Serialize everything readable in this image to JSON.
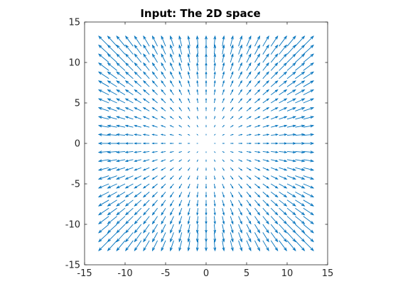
{
  "chart_data": {
    "type": "quiver",
    "title": "Input: The 2D space",
    "xlabel": "",
    "ylabel": "",
    "xlim": [
      -15,
      15
    ],
    "ylim": [
      -15,
      15
    ],
    "xticks": [
      -15,
      -10,
      -5,
      0,
      5,
      10,
      15
    ],
    "yticks": [
      -15,
      -10,
      -5,
      0,
      5,
      10,
      15
    ],
    "xtick_labels": [
      "-15",
      "-10",
      "-5",
      "0",
      "5",
      "10",
      "15"
    ],
    "ytick_labels": [
      "-15",
      "-10",
      "-5",
      "0",
      "5",
      "10",
      "15"
    ],
    "grid": false,
    "box": true,
    "field": {
      "description_of_values": "vector at (x, y) equals (x, y): outward radial field",
      "x_range": [
        -12,
        12
      ],
      "y_range": [
        -12,
        12
      ],
      "step": 1,
      "u": "x",
      "v": "y"
    },
    "colors": {
      "arrow": "#0072BD",
      "axes": "#262626",
      "background": "#ffffff"
    }
  }
}
